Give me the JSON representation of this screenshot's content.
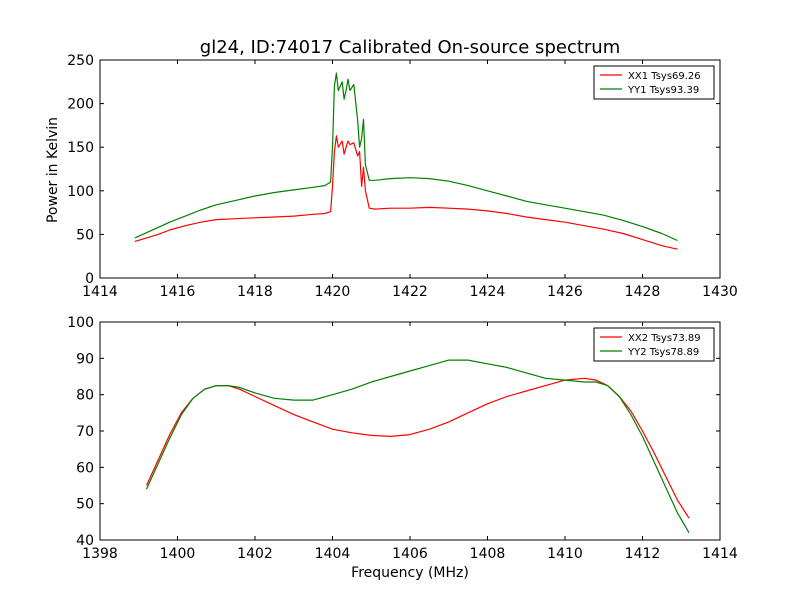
{
  "chart_data": [
    {
      "type": "line",
      "title": "gl24, ID:74017 Calibrated On-source spectrum",
      "xlabel": "",
      "ylabel": "Power in Kelvin",
      "xlim": [
        1414,
        1430
      ],
      "ylim": [
        0,
        250
      ],
      "xticks": [
        "1414",
        "1416",
        "1418",
        "1420",
        "1422",
        "1424",
        "1426",
        "1428",
        "1430"
      ],
      "yticks": [
        "0",
        "50",
        "100",
        "150",
        "200",
        "250"
      ],
      "grid": false,
      "legend_position": "top-right",
      "series": [
        {
          "name": "XX1 Tsys69.26",
          "color": "#ff0000",
          "x": [
            1414.9,
            1415.2,
            1415.5,
            1415.8,
            1416.2,
            1416.6,
            1417.0,
            1417.5,
            1418.0,
            1418.5,
            1419.0,
            1419.5,
            1419.8,
            1419.95,
            1420.0,
            1420.05,
            1420.1,
            1420.15,
            1420.25,
            1420.3,
            1420.35,
            1420.4,
            1420.45,
            1420.55,
            1420.65,
            1420.7,
            1420.75,
            1420.8,
            1420.85,
            1420.95,
            1421.1,
            1421.5,
            1422.0,
            1422.5,
            1423.0,
            1423.5,
            1424.0,
            1424.5,
            1425.0,
            1425.5,
            1426.0,
            1426.5,
            1427.0,
            1427.5,
            1428.0,
            1428.5,
            1428.9
          ],
          "y": [
            42,
            46,
            50,
            55,
            60,
            64,
            67,
            68,
            69,
            70,
            71,
            73,
            74,
            76,
            105,
            145,
            163,
            150,
            157,
            142,
            150,
            157,
            153,
            155,
            140,
            145,
            105,
            127,
            100,
            80,
            79,
            80,
            80,
            81,
            80,
            79,
            77,
            74,
            70,
            67,
            64,
            60,
            56,
            51,
            44,
            37,
            33
          ]
        },
        {
          "name": "YY1 Tsys93.39",
          "color": "#008000",
          "x": [
            1414.9,
            1415.2,
            1415.5,
            1415.8,
            1416.2,
            1416.6,
            1417.0,
            1417.5,
            1418.0,
            1418.5,
            1419.0,
            1419.5,
            1419.8,
            1419.95,
            1420.0,
            1420.05,
            1420.1,
            1420.15,
            1420.25,
            1420.3,
            1420.35,
            1420.4,
            1420.45,
            1420.55,
            1420.65,
            1420.7,
            1420.75,
            1420.8,
            1420.85,
            1420.95,
            1421.1,
            1421.5,
            1422.0,
            1422.5,
            1423.0,
            1423.5,
            1424.0,
            1424.5,
            1425.0,
            1425.5,
            1426.0,
            1426.5,
            1427.0,
            1427.5,
            1428.0,
            1428.5,
            1428.9
          ],
          "y": [
            46,
            52,
            58,
            64,
            71,
            78,
            84,
            89,
            94,
            98,
            101,
            104,
            106,
            110,
            150,
            220,
            235,
            215,
            225,
            205,
            215,
            228,
            215,
            222,
            180,
            150,
            160,
            182,
            130,
            112,
            112,
            114,
            115,
            114,
            111,
            106,
            100,
            94,
            88,
            84,
            80,
            76,
            72,
            66,
            59,
            51,
            43
          ]
        }
      ]
    },
    {
      "type": "line",
      "title": "",
      "xlabel": "Frequency (MHz)",
      "ylabel": "",
      "xlim": [
        1398,
        1414
      ],
      "ylim": [
        40,
        100
      ],
      "xticks": [
        "1398",
        "1400",
        "1402",
        "1404",
        "1406",
        "1408",
        "1410",
        "1412",
        "1414"
      ],
      "yticks": [
        "40",
        "50",
        "60",
        "70",
        "80",
        "90",
        "100"
      ],
      "grid": false,
      "legend_position": "top-right",
      "series": [
        {
          "name": "XX2 Tsys73.89",
          "color": "#ff0000",
          "x": [
            1399.2,
            1399.5,
            1399.8,
            1400.1,
            1400.4,
            1400.7,
            1401.0,
            1401.3,
            1401.6,
            1402.0,
            1402.5,
            1403.0,
            1403.5,
            1404.0,
            1404.5,
            1405.0,
            1405.5,
            1406.0,
            1406.5,
            1407.0,
            1407.5,
            1408.0,
            1408.5,
            1409.0,
            1409.5,
            1410.0,
            1410.5,
            1410.8,
            1411.1,
            1411.4,
            1411.7,
            1412.0,
            1412.3,
            1412.6,
            1412.9,
            1413.2
          ],
          "y": [
            55,
            62,
            69,
            75,
            79,
            81.5,
            82.5,
            82.5,
            81.5,
            79.5,
            77,
            74.5,
            72.5,
            70.5,
            69.5,
            68.8,
            68.5,
            69,
            70.5,
            72.5,
            75,
            77.5,
            79.5,
            81,
            82.5,
            84,
            84.5,
            84,
            82.5,
            79.5,
            75.5,
            70,
            64,
            57.5,
            51,
            46
          ]
        },
        {
          "name": "YY2 Tsys78.89",
          "color": "#008000",
          "x": [
            1399.2,
            1399.5,
            1399.8,
            1400.1,
            1400.4,
            1400.7,
            1401.0,
            1401.3,
            1401.6,
            1402.0,
            1402.5,
            1403.0,
            1403.5,
            1404.0,
            1404.5,
            1405.0,
            1405.5,
            1406.0,
            1406.5,
            1407.0,
            1407.5,
            1408.0,
            1408.5,
            1409.0,
            1409.5,
            1410.0,
            1410.5,
            1410.8,
            1411.1,
            1411.4,
            1411.7,
            1412.0,
            1412.3,
            1412.6,
            1412.9,
            1413.2
          ],
          "y": [
            54,
            61,
            68,
            74.5,
            79,
            81.5,
            82.5,
            82.5,
            82,
            80.5,
            79,
            78.5,
            78.5,
            80,
            81.5,
            83.5,
            85,
            86.5,
            88,
            89.5,
            89.5,
            88.5,
            87.5,
            86,
            84.5,
            84,
            83.5,
            83.5,
            82.5,
            79.5,
            74.5,
            68.5,
            61.5,
            54.5,
            47.5,
            42
          ]
        }
      ]
    }
  ]
}
